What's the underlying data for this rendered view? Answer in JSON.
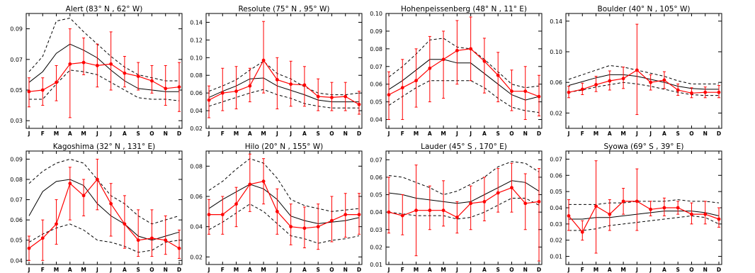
{
  "months": [
    "J",
    "F",
    "M",
    "A",
    "M",
    "J",
    "J",
    "A",
    "S",
    "O",
    "N",
    "D"
  ],
  "colors": {
    "obs": "#ff0000",
    "model": "#000000",
    "frame": "#000000"
  },
  "chart_data": [
    {
      "type": "line",
      "title": "Alert   (83° N , 62° W)",
      "ylim": [
        0.025,
        0.1
      ],
      "yticks": [
        0.03,
        0.05,
        0.07,
        0.09
      ],
      "ytick_labels": [
        "0.03",
        "0.05",
        "0.07",
        "0.09"
      ],
      "series": [
        {
          "role": "model",
          "values": [
            0.055,
            0.062,
            0.074,
            0.08,
            0.076,
            0.071,
            0.063,
            0.056,
            0.051,
            0.05,
            0.049,
            0.049
          ]
        },
        {
          "role": "model-upper",
          "values": [
            0.062,
            0.072,
            0.095,
            0.097,
            0.088,
            0.08,
            0.072,
            0.065,
            0.06,
            0.058,
            0.056,
            0.056
          ]
        },
        {
          "role": "model-lower",
          "values": [
            0.044,
            0.044,
            0.054,
            0.063,
            0.062,
            0.06,
            0.055,
            0.05,
            0.045,
            0.044,
            0.044,
            0.043
          ]
        },
        {
          "role": "observed",
          "values": [
            0.049,
            0.05,
            0.055,
            0.067,
            0.068,
            0.066,
            0.067,
            0.061,
            0.059,
            0.056,
            0.051,
            0.052
          ],
          "err_low": [
            0.039,
            0.04,
            0.043,
            0.032,
            0.06,
            0.052,
            0.05,
            0.052,
            0.05,
            0.048,
            0.04,
            0.036
          ],
          "err_high": [
            0.058,
            0.058,
            0.066,
            0.09,
            0.084,
            0.08,
            0.088,
            0.072,
            0.068,
            0.066,
            0.066,
            0.068
          ]
        }
      ]
    },
    {
      "type": "line",
      "title": "Resolute   (75° N , 95° W)",
      "ylim": [
        0.02,
        0.15
      ],
      "yticks": [
        0.02,
        0.04,
        0.06,
        0.08,
        0.1,
        0.12,
        0.14
      ],
      "ytick_labels": [
        "0.02",
        "0.04",
        "0.06",
        "0.08",
        "0.10",
        "0.12",
        "0.14"
      ],
      "series": [
        {
          "role": "model",
          "values": [
            0.055,
            0.062,
            0.068,
            0.076,
            0.077,
            0.068,
            0.063,
            0.058,
            0.052,
            0.05,
            0.05,
            0.05
          ]
        },
        {
          "role": "model-upper",
          "values": [
            0.062,
            0.068,
            0.075,
            0.086,
            0.096,
            0.082,
            0.076,
            0.067,
            0.06,
            0.058,
            0.058,
            0.06
          ]
        },
        {
          "role": "model-lower",
          "values": [
            0.045,
            0.05,
            0.055,
            0.06,
            0.064,
            0.058,
            0.054,
            0.048,
            0.045,
            0.043,
            0.043,
            0.043
          ]
        },
        {
          "role": "observed",
          "values": [
            0.052,
            0.06,
            0.062,
            0.068,
            0.097,
            0.075,
            0.07,
            0.069,
            0.056,
            0.055,
            0.056,
            0.047
          ],
          "err_low": [
            0.032,
            0.04,
            0.042,
            0.05,
            0.06,
            0.042,
            0.045,
            0.045,
            0.04,
            0.04,
            0.04,
            0.036
          ],
          "err_high": [
            0.068,
            0.088,
            0.09,
            0.088,
            0.141,
            0.1,
            0.096,
            0.09,
            0.076,
            0.072,
            0.072,
            0.062
          ]
        }
      ]
    },
    {
      "type": "line",
      "title": "Hohenpeissenberg   (48° N , 11° E)",
      "ylim": [
        0.035,
        0.1
      ],
      "yticks": [
        0.04,
        0.05,
        0.06,
        0.07,
        0.08,
        0.09,
        0.1
      ],
      "ytick_labels": [
        "0.04",
        "0.05",
        "0.06",
        "0.07",
        "0.08",
        "0.09",
        "0.10"
      ],
      "series": [
        {
          "role": "model",
          "values": [
            0.057,
            0.062,
            0.068,
            0.074,
            0.074,
            0.072,
            0.072,
            0.066,
            0.06,
            0.054,
            0.051,
            0.053
          ]
        },
        {
          "role": "model-upper",
          "values": [
            0.064,
            0.07,
            0.077,
            0.085,
            0.086,
            0.081,
            0.08,
            0.074,
            0.067,
            0.06,
            0.058,
            0.059
          ]
        },
        {
          "role": "model-lower",
          "values": [
            0.048,
            0.053,
            0.058,
            0.062,
            0.062,
            0.062,
            0.062,
            0.058,
            0.052,
            0.047,
            0.045,
            0.044
          ]
        },
        {
          "role": "observed",
          "values": [
            0.054,
            0.058,
            0.062,
            0.069,
            0.074,
            0.079,
            0.08,
            0.073,
            0.065,
            0.056,
            0.056,
            0.053
          ],
          "err_low": [
            0.04,
            0.04,
            0.047,
            0.05,
            0.052,
            0.06,
            0.062,
            0.055,
            0.05,
            0.045,
            0.04,
            0.042
          ],
          "err_high": [
            0.067,
            0.074,
            0.08,
            0.087,
            0.09,
            0.096,
            0.098,
            0.086,
            0.078,
            0.068,
            0.07,
            0.065
          ]
        }
      ]
    },
    {
      "type": "line",
      "title": "Boulder   (40° N , 105° W)",
      "ylim": [
        0.0,
        0.15
      ],
      "yticks": [
        0.02,
        0.06,
        0.1,
        0.14
      ],
      "ytick_labels": [
        "0.02",
        "0.06",
        "0.10",
        "0.14"
      ],
      "series": [
        {
          "role": "model",
          "values": [
            0.056,
            0.061,
            0.066,
            0.07,
            0.07,
            0.068,
            0.064,
            0.06,
            0.055,
            0.052,
            0.051,
            0.051
          ]
        },
        {
          "role": "model-upper",
          "values": [
            0.064,
            0.07,
            0.076,
            0.082,
            0.08,
            0.076,
            0.072,
            0.068,
            0.062,
            0.058,
            0.058,
            0.058
          ]
        },
        {
          "role": "model-lower",
          "values": [
            0.047,
            0.05,
            0.054,
            0.057,
            0.06,
            0.058,
            0.055,
            0.051,
            0.047,
            0.044,
            0.043,
            0.043
          ]
        },
        {
          "role": "observed",
          "values": [
            0.047,
            0.051,
            0.057,
            0.062,
            0.065,
            0.076,
            0.06,
            0.063,
            0.05,
            0.046,
            0.047,
            0.047
          ],
          "err_low": [
            0.04,
            0.044,
            0.048,
            0.05,
            0.052,
            0.018,
            0.05,
            0.052,
            0.043,
            0.04,
            0.04,
            0.04
          ],
          "err_high": [
            0.055,
            0.059,
            0.068,
            0.075,
            0.08,
            0.136,
            0.07,
            0.074,
            0.058,
            0.053,
            0.054,
            0.056
          ]
        }
      ]
    },
    {
      "type": "line",
      "title": "Kagoshima   (32° N , 131° E)",
      "ylim": [
        0.038,
        0.094
      ],
      "yticks": [
        0.04,
        0.05,
        0.06,
        0.07,
        0.08,
        0.09
      ],
      "ytick_labels": [
        "0.04",
        "0.05",
        "0.06",
        "0.07",
        "0.08",
        "0.09"
      ],
      "series": [
        {
          "role": "model",
          "values": [
            0.062,
            0.074,
            0.079,
            0.08,
            0.077,
            0.068,
            0.062,
            0.058,
            0.052,
            0.05,
            0.052,
            0.054
          ]
        },
        {
          "role": "model-upper",
          "values": [
            0.078,
            0.084,
            0.088,
            0.09,
            0.088,
            0.08,
            0.072,
            0.068,
            0.062,
            0.058,
            0.06,
            0.062
          ]
        },
        {
          "role": "model-lower",
          "values": [
            0.049,
            0.053,
            0.056,
            0.058,
            0.055,
            0.05,
            0.049,
            0.047,
            0.044,
            0.045,
            0.049,
            0.05
          ]
        },
        {
          "role": "observed",
          "values": [
            0.046,
            0.051,
            0.058,
            0.078,
            0.072,
            0.08,
            0.068,
            0.058,
            0.05,
            0.051,
            0.05,
            0.046
          ],
          "err_low": [
            0.04,
            0.04,
            0.048,
            0.06,
            0.062,
            0.065,
            0.052,
            0.046,
            0.042,
            0.042,
            0.043,
            0.041
          ],
          "err_high": [
            0.052,
            0.06,
            0.07,
            0.086,
            0.08,
            0.09,
            0.078,
            0.072,
            0.065,
            0.065,
            0.062,
            0.055
          ]
        }
      ]
    },
    {
      "type": "line",
      "title": "Hilo   (20° N , 155° W)",
      "ylim": [
        0.015,
        0.09
      ],
      "yticks": [
        0.02,
        0.04,
        0.06,
        0.08
      ],
      "ytick_labels": [
        "0.02",
        "0.04",
        "0.06",
        "0.08"
      ],
      "series": [
        {
          "role": "model",
          "values": [
            0.052,
            0.058,
            0.063,
            0.068,
            0.065,
            0.058,
            0.047,
            0.044,
            0.042,
            0.043,
            0.044,
            0.046
          ]
        },
        {
          "role": "model-upper",
          "values": [
            0.064,
            0.07,
            0.078,
            0.085,
            0.082,
            0.072,
            0.058,
            0.054,
            0.052,
            0.05,
            0.051,
            0.052
          ]
        },
        {
          "role": "model-lower",
          "values": [
            0.038,
            0.043,
            0.049,
            0.055,
            0.05,
            0.042,
            0.034,
            0.032,
            0.029,
            0.031,
            0.032,
            0.034
          ]
        },
        {
          "role": "observed",
          "values": [
            0.048,
            0.048,
            0.055,
            0.068,
            0.07,
            0.05,
            0.04,
            0.039,
            0.04,
            0.044,
            0.048,
            0.048
          ],
          "err_low": [
            0.035,
            0.035,
            0.04,
            0.05,
            0.055,
            0.035,
            0.028,
            0.026,
            0.025,
            0.03,
            0.033,
            0.035
          ],
          "err_high": [
            0.058,
            0.06,
            0.066,
            0.088,
            0.085,
            0.065,
            0.055,
            0.053,
            0.055,
            0.06,
            0.062,
            0.062
          ]
        }
      ]
    },
    {
      "type": "line",
      "title": "Lauder   (45° S , 170° E)",
      "ylim": [
        0.01,
        0.075
      ],
      "yticks": [
        0.01,
        0.02,
        0.03,
        0.04,
        0.05,
        0.06,
        0.07
      ],
      "ytick_labels": [
        "0.01",
        "0.02",
        "0.03",
        "0.04",
        "0.05",
        "0.06",
        "0.07"
      ],
      "series": [
        {
          "role": "model",
          "values": [
            0.051,
            0.05,
            0.048,
            0.047,
            0.046,
            0.045,
            0.046,
            0.05,
            0.054,
            0.058,
            0.057,
            0.052
          ]
        },
        {
          "role": "model-upper",
          "values": [
            0.061,
            0.06,
            0.057,
            0.054,
            0.05,
            0.052,
            0.056,
            0.06,
            0.066,
            0.069,
            0.068,
            0.063
          ]
        },
        {
          "role": "model-lower",
          "values": [
            0.04,
            0.039,
            0.038,
            0.038,
            0.038,
            0.036,
            0.037,
            0.04,
            0.044,
            0.048,
            0.048,
            0.044
          ]
        },
        {
          "role": "observed",
          "values": [
            0.04,
            0.038,
            0.041,
            0.041,
            0.041,
            0.037,
            0.045,
            0.046,
            0.051,
            0.054,
            0.045,
            0.046
          ],
          "err_low": [
            0.028,
            0.027,
            0.015,
            0.03,
            0.032,
            0.028,
            0.03,
            0.035,
            0.04,
            0.04,
            0.03,
            0.012
          ],
          "err_high": [
            0.06,
            0.05,
            0.067,
            0.055,
            0.058,
            0.046,
            0.055,
            0.06,
            0.065,
            0.068,
            0.062,
            0.065
          ]
        }
      ]
    },
    {
      "type": "line",
      "title": "Syowa   (69° S , 39° E)",
      "ylim": [
        0.005,
        0.075
      ],
      "yticks": [
        0.01,
        0.02,
        0.03,
        0.04,
        0.05,
        0.06,
        0.07
      ],
      "ytick_labels": [
        "0.01",
        "0.02",
        "0.03",
        "0.04",
        "0.05",
        "0.06",
        "0.07"
      ],
      "series": [
        {
          "role": "model",
          "values": [
            0.033,
            0.033,
            0.034,
            0.034,
            0.035,
            0.036,
            0.037,
            0.038,
            0.038,
            0.038,
            0.037,
            0.035
          ]
        },
        {
          "role": "model-upper",
          "values": [
            0.042,
            0.042,
            0.042,
            0.043,
            0.043,
            0.044,
            0.044,
            0.044,
            0.045,
            0.044,
            0.044,
            0.043
          ]
        },
        {
          "role": "model-lower",
          "values": [
            0.026,
            0.026,
            0.027,
            0.029,
            0.03,
            0.031,
            0.032,
            0.033,
            0.034,
            0.035,
            0.034,
            0.03
          ]
        },
        {
          "role": "observed",
          "values": [
            0.035,
            0.025,
            0.041,
            0.036,
            0.044,
            0.044,
            0.039,
            0.04,
            0.04,
            0.036,
            0.036,
            0.033
          ],
          "err_low": [
            0.026,
            0.02,
            0.012,
            0.026,
            0.036,
            0.026,
            0.035,
            0.035,
            0.036,
            0.03,
            0.03,
            0.028
          ],
          "err_high": [
            0.045,
            0.032,
            0.069,
            0.045,
            0.052,
            0.064,
            0.044,
            0.046,
            0.044,
            0.043,
            0.044,
            0.04
          ]
        }
      ]
    }
  ]
}
